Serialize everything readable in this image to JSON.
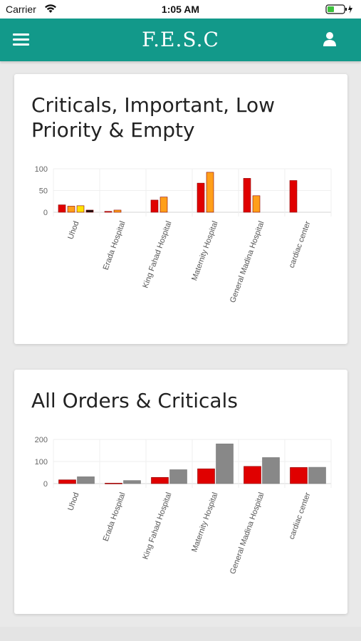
{
  "status_bar": {
    "carrier": "Carrier",
    "time": "1:05 AM"
  },
  "app_bar": {
    "title": "F.E.S.C",
    "menu_icon": "hamburger-menu-icon",
    "profile_icon": "user-profile-icon",
    "color": "#12998a"
  },
  "cards": [
    {
      "title": "Criticals, Important, Low Priority & Empty"
    },
    {
      "title": "All Orders & Criticals"
    }
  ],
  "chart_data": [
    {
      "type": "bar",
      "title": "Criticals, Important, Low Priority & Empty",
      "categories": [
        "Uhod",
        "Erada Hospital",
        "King Fahad Hospital",
        "Maternity Hospital",
        "General Madina Hospital",
        "cardiac center"
      ],
      "series": [
        {
          "color": "#e00000",
          "values": [
            17,
            2,
            28,
            67,
            78,
            73
          ]
        },
        {
          "color": "#ff9f1a",
          "values": [
            14,
            5,
            35,
            92,
            38,
            0
          ]
        },
        {
          "color": "#ffe100",
          "values": [
            15,
            0,
            0,
            0,
            0,
            0
          ]
        },
        {
          "color": "#111111",
          "values": [
            5,
            0,
            0,
            0,
            0,
            0
          ]
        }
      ],
      "yticks": [
        0,
        50,
        100
      ],
      "ylim": [
        0,
        100
      ],
      "grid": true
    },
    {
      "type": "bar",
      "title": "All Orders & Criticals",
      "categories": [
        "Uhod",
        "Erada Hospital",
        "King Fahad Hospital",
        "Maternity Hospital",
        "General Madina Hospital",
        "cardiac center"
      ],
      "series": [
        {
          "color": "#e00000",
          "values": [
            17,
            2,
            28,
            67,
            78,
            73
          ]
        },
        {
          "color": "#888888",
          "values": [
            31,
            14,
            63,
            180,
            118,
            74
          ]
        }
      ],
      "yticks": [
        0,
        100,
        200
      ],
      "ylim": [
        0,
        200
      ],
      "grid": true
    }
  ]
}
